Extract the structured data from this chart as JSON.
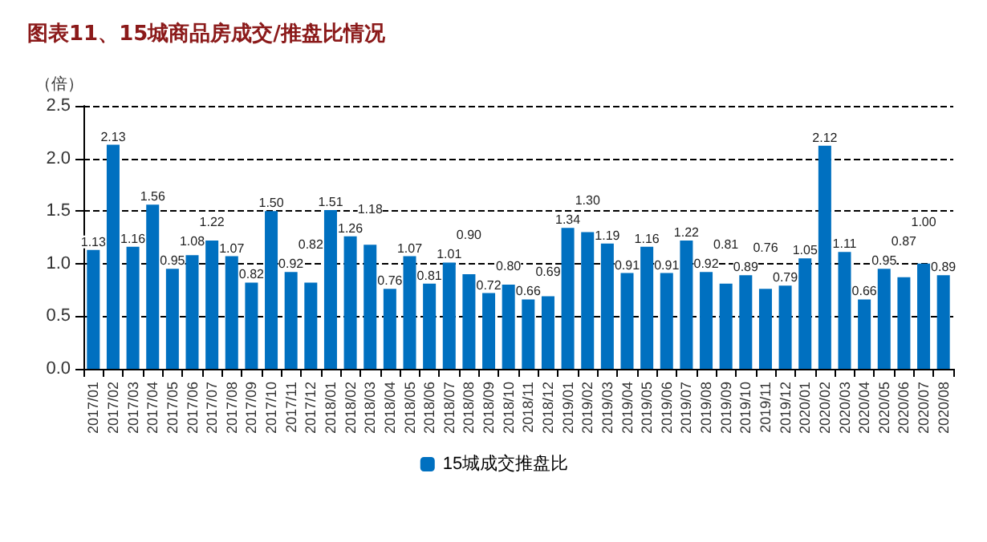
{
  "chart_data": {
    "type": "bar",
    "title": "图表11、15城商品房成交/推盘比情况",
    "ylabel": "（倍）",
    "categories": [
      "2017/01",
      "2017/02",
      "2017/03",
      "2017/04",
      "2017/05",
      "2017/06",
      "2017/07",
      "2017/08",
      "2017/09",
      "2017/10",
      "2017/11",
      "2017/12",
      "2018/01",
      "2018/02",
      "2018/03",
      "2018/04",
      "2018/05",
      "2018/06",
      "2018/07",
      "2018/08",
      "2018/09",
      "2018/10",
      "2018/11",
      "2018/12",
      "2019/01",
      "2019/02",
      "2019/03",
      "2019/04",
      "2019/05",
      "2019/06",
      "2019/07",
      "2019/08",
      "2019/09",
      "2019/10",
      "2019/11",
      "2019/12",
      "2020/01",
      "2020/02",
      "2020/03",
      "2020/04",
      "2020/05",
      "2020/06",
      "2020/07",
      "2020/08"
    ],
    "series": [
      {
        "name": "15城成交推盘比",
        "color": "#0070c0",
        "values": [
          1.13,
          2.13,
          1.16,
          1.56,
          0.95,
          1.08,
          1.22,
          1.07,
          0.82,
          1.5,
          0.92,
          0.82,
          1.51,
          1.26,
          1.18,
          0.76,
          1.07,
          0.81,
          1.01,
          0.9,
          0.72,
          0.8,
          0.66,
          0.69,
          1.34,
          1.3,
          1.19,
          0.91,
          1.16,
          0.91,
          1.22,
          0.92,
          0.81,
          0.89,
          0.76,
          0.79,
          1.05,
          2.12,
          1.11,
          0.66,
          0.95,
          0.87,
          1.0,
          0.89
        ],
        "value_labels": [
          "1.13",
          "2.13",
          "1.16",
          "1.56",
          "0.95",
          "1.08",
          "1.22",
          "1.07",
          "0.82",
          "1.50",
          "0.92",
          "0.82",
          "1.51",
          "1.26",
          "1.18",
          "0.76",
          "1.07",
          "0.81",
          "1.01",
          "0.90",
          "0.72",
          "0.80",
          "0.66",
          "0.69",
          "1.34",
          "1.30",
          "1.19",
          "0.91",
          "1.16",
          "0.91",
          "1.22",
          "0.92",
          "0.81",
          "0.89",
          "0.76",
          "0.79",
          "1.05",
          "2.12",
          "1.11",
          "0.66",
          "0.95",
          "0.87",
          "1.00",
          "0.89"
        ]
      }
    ],
    "ylim": [
      0,
      2.5
    ],
    "yticks": [
      {
        "value": 0,
        "label": "0.0"
      },
      {
        "value": 0.5,
        "label": "0.5"
      },
      {
        "value": 1,
        "label": "1.0"
      },
      {
        "value": 1.5,
        "label": "1.5"
      },
      {
        "value": 2,
        "label": "2.0"
      },
      {
        "value": 2.5,
        "label": "2.5"
      }
    ],
    "grid": "y",
    "legend": "bottom"
  }
}
